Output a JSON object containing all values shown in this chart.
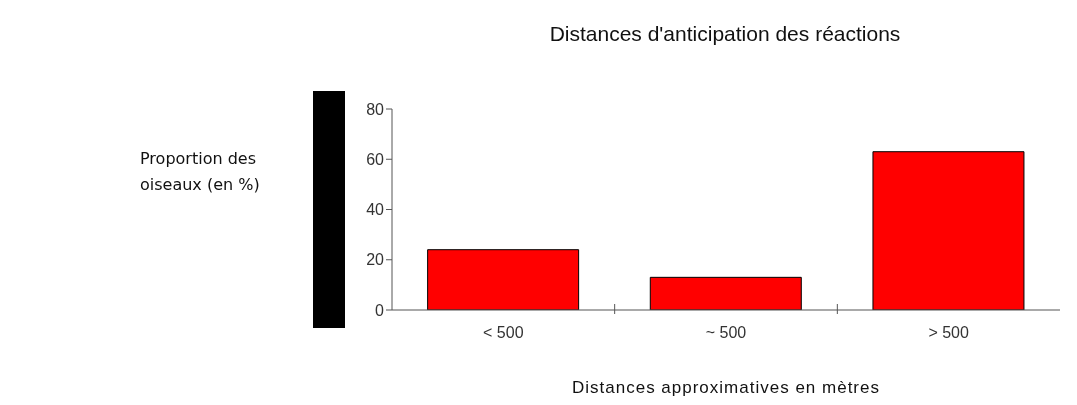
{
  "chart_data": {
    "type": "bar",
    "title": "Distances d'anticipation des réactions",
    "xlabel": "Distances approximatives en mètres",
    "annotations": [
      "Proportion des oiseaux (en %)"
    ],
    "categories": [
      "< 500",
      "~ 500",
      "> 500"
    ],
    "values": [
      24,
      13,
      63
    ],
    "color": "#ff0000",
    "ylim": [
      0,
      80
    ],
    "yticks": [
      0,
      20,
      40,
      60,
      80
    ]
  }
}
